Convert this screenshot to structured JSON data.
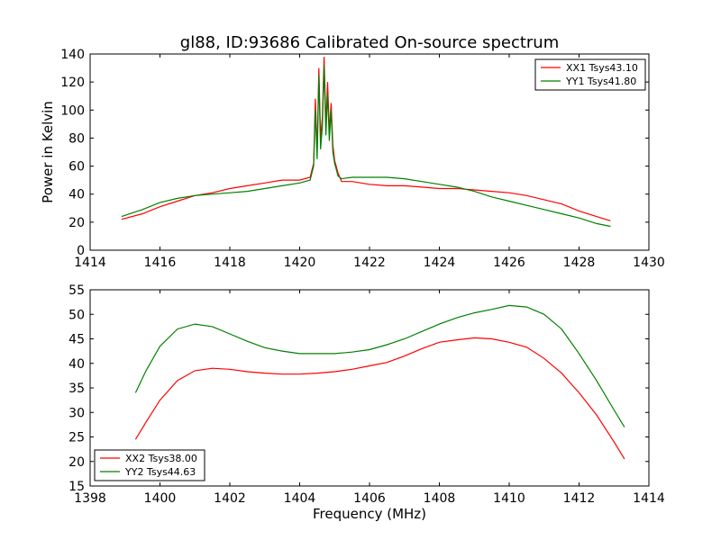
{
  "figure": {
    "title": "gl88, ID:93686 Calibrated On-source spectrum"
  },
  "chart_data": [
    {
      "type": "line",
      "xlabel": "",
      "ylabel": "Power in Kelvin",
      "xlim": [
        1414,
        1430
      ],
      "ylim": [
        0,
        140
      ],
      "xticks": [
        1414,
        1416,
        1418,
        1420,
        1422,
        1424,
        1426,
        1428,
        1430
      ],
      "yticks": [
        0,
        20,
        40,
        60,
        80,
        100,
        120,
        140
      ],
      "grid": false,
      "legend_position": "top-right",
      "series": [
        {
          "name": "XX1 Tsys43.10",
          "color": "#ff0000",
          "x": [
            1414.9,
            1415.5,
            1416.0,
            1416.5,
            1417.0,
            1417.5,
            1418.0,
            1418.5,
            1419.0,
            1419.5,
            1420.0,
            1420.3,
            1420.4,
            1420.45,
            1420.5,
            1420.55,
            1420.6,
            1420.65,
            1420.7,
            1420.75,
            1420.8,
            1420.85,
            1420.9,
            1420.95,
            1421.0,
            1421.1,
            1421.2,
            1421.5,
            1422.0,
            1422.5,
            1423.0,
            1423.5,
            1424.0,
            1424.5,
            1425.0,
            1425.5,
            1426.0,
            1426.5,
            1427.0,
            1427.5,
            1428.0,
            1428.5,
            1428.9
          ],
          "y": [
            22,
            26,
            31,
            35,
            39,
            41,
            44,
            46,
            48,
            50,
            50,
            52,
            62,
            108,
            70,
            130,
            80,
            95,
            138,
            90,
            120,
            85,
            105,
            75,
            64,
            55,
            49,
            49,
            47,
            46,
            46,
            45,
            44,
            44,
            43,
            42,
            41,
            39,
            36,
            33,
            28,
            24,
            21
          ]
        },
        {
          "name": "YY1 Tsys41.80",
          "color": "#008000",
          "x": [
            1414.9,
            1415.5,
            1416.0,
            1416.5,
            1417.0,
            1417.5,
            1418.0,
            1418.5,
            1419.0,
            1419.5,
            1420.0,
            1420.3,
            1420.4,
            1420.45,
            1420.5,
            1420.55,
            1420.6,
            1420.65,
            1420.7,
            1420.75,
            1420.8,
            1420.85,
            1420.9,
            1420.95,
            1421.0,
            1421.1,
            1421.2,
            1421.5,
            1422.0,
            1422.5,
            1423.0,
            1423.5,
            1424.0,
            1424.5,
            1425.0,
            1425.5,
            1426.0,
            1426.5,
            1427.0,
            1427.5,
            1428.0,
            1428.5,
            1428.9
          ],
          "y": [
            24,
            29,
            34,
            37,
            39,
            40,
            41,
            42,
            44,
            46,
            48,
            50,
            60,
            100,
            65,
            125,
            72,
            88,
            132,
            82,
            112,
            78,
            100,
            70,
            62,
            53,
            51,
            52,
            52,
            52,
            51,
            49,
            47,
            45,
            42,
            38,
            35,
            32,
            29,
            26,
            23,
            19,
            17
          ]
        }
      ]
    },
    {
      "type": "line",
      "xlabel": "Frequency (MHz)",
      "ylabel": "",
      "xlim": [
        1398,
        1414
      ],
      "ylim": [
        15,
        55
      ],
      "xticks": [
        1398,
        1400,
        1402,
        1404,
        1406,
        1408,
        1410,
        1412,
        1414
      ],
      "yticks": [
        15,
        20,
        25,
        30,
        35,
        40,
        45,
        50,
        55
      ],
      "grid": false,
      "legend_position": "bottom-left",
      "series": [
        {
          "name": "XX2 Tsys38.00",
          "color": "#ff0000",
          "x": [
            1399.3,
            1399.6,
            1400.0,
            1400.5,
            1401.0,
            1401.5,
            1402.0,
            1402.5,
            1403.0,
            1403.5,
            1404.0,
            1404.5,
            1405.0,
            1405.5,
            1406.0,
            1406.5,
            1407.0,
            1407.5,
            1408.0,
            1408.5,
            1409.0,
            1409.5,
            1410.0,
            1410.5,
            1411.0,
            1411.5,
            1412.0,
            1412.5,
            1413.0,
            1413.3
          ],
          "y": [
            24.5,
            28,
            32.5,
            36.5,
            38.5,
            39,
            38.8,
            38.3,
            38,
            37.8,
            37.8,
            38,
            38.3,
            38.8,
            39.5,
            40.2,
            41.5,
            43,
            44.3,
            44.8,
            45.2,
            45,
            44.3,
            43.3,
            41,
            38,
            34,
            29.5,
            24,
            20.5
          ]
        },
        {
          "name": "YY2 Tsys44.63",
          "color": "#008000",
          "x": [
            1399.3,
            1399.6,
            1400.0,
            1400.5,
            1401.0,
            1401.5,
            1402.0,
            1402.5,
            1403.0,
            1403.5,
            1404.0,
            1404.5,
            1405.0,
            1405.5,
            1406.0,
            1406.5,
            1407.0,
            1407.5,
            1408.0,
            1408.5,
            1409.0,
            1409.5,
            1410.0,
            1410.5,
            1411.0,
            1411.5,
            1412.0,
            1412.5,
            1413.0,
            1413.3
          ],
          "y": [
            34,
            38.5,
            43.5,
            47,
            48,
            47.5,
            46,
            44.5,
            43.2,
            42.5,
            42,
            42,
            42,
            42.3,
            42.8,
            43.8,
            45,
            46.5,
            48,
            49.3,
            50.3,
            51,
            51.8,
            51.5,
            50,
            47,
            42,
            36.5,
            30.5,
            27
          ]
        }
      ]
    }
  ]
}
